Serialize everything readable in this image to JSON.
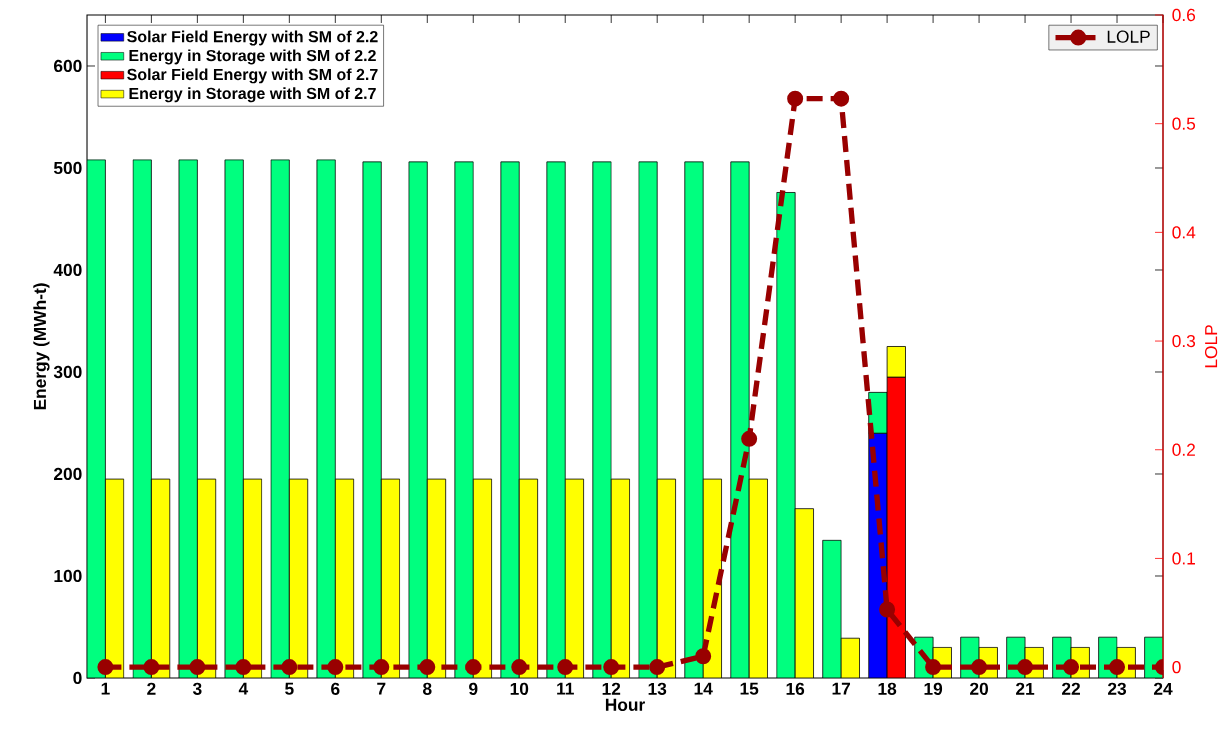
{
  "chart_data": {
    "type": "bar",
    "xlabel": "Hour",
    "ylabel": "Energy (MWh-t)",
    "y2label": "LOLP",
    "x": [
      1,
      2,
      3,
      4,
      5,
      6,
      7,
      8,
      9,
      10,
      11,
      12,
      13,
      14,
      15,
      16,
      17,
      18,
      19,
      20,
      21,
      22,
      23,
      24
    ],
    "xlim": [
      0.6,
      24
    ],
    "xticks": [
      1,
      2,
      3,
      4,
      5,
      6,
      7,
      8,
      9,
      10,
      11,
      12,
      13,
      14,
      15,
      16,
      17,
      18,
      19,
      20,
      21,
      22,
      23,
      24
    ],
    "ylim": [
      0,
      650
    ],
    "yticks": [
      0,
      100,
      200,
      300,
      400,
      500,
      600
    ],
    "y2lim": [
      -0.01,
      0.6
    ],
    "y2ticks": [
      0,
      0.1,
      0.2,
      0.3,
      0.4,
      0.5,
      0.6
    ],
    "legend": "top left",
    "grid": false,
    "series": [
      {
        "name": "Solar Field Energy with SM of 2.2",
        "color": "#0000ff",
        "values": [
          null,
          null,
          null,
          null,
          null,
          null,
          null,
          null,
          null,
          null,
          null,
          null,
          null,
          null,
          null,
          null,
          null,
          240,
          null,
          null,
          null,
          null,
          null,
          null
        ]
      },
      {
        "name": "Energy in Storage with SM of 2.2",
        "color": "#00ff7f",
        "base": [
          0,
          0,
          0,
          0,
          0,
          0,
          0,
          0,
          0,
          0,
          0,
          0,
          0,
          0,
          0,
          0,
          0,
          240,
          0,
          0,
          0,
          0,
          0,
          0
        ],
        "values": [
          508,
          508,
          508,
          508,
          508,
          508,
          506,
          506,
          506,
          506,
          506,
          506,
          506,
          506,
          506,
          476,
          135,
          40,
          40,
          40,
          40,
          40,
          40,
          40
        ]
      },
      {
        "name": "Solar Field Energy with SM of 2.7",
        "color": "#ff0000",
        "values": [
          null,
          null,
          null,
          null,
          null,
          null,
          null,
          null,
          null,
          null,
          null,
          null,
          null,
          null,
          null,
          null,
          null,
          295,
          null,
          null,
          null,
          null,
          null,
          null
        ]
      },
      {
        "name": "Energy in Storage with SM of 2.7",
        "color": "#ffff00",
        "base": [
          0,
          0,
          0,
          0,
          0,
          0,
          0,
          0,
          0,
          0,
          0,
          0,
          0,
          0,
          0,
          0,
          0,
          295,
          0,
          0,
          0,
          0,
          0,
          null
        ],
        "values": [
          195,
          195,
          195,
          195,
          195,
          195,
          195,
          195,
          195,
          195,
          195,
          195,
          195,
          195,
          195,
          166,
          39,
          30,
          30,
          30,
          30,
          30,
          30,
          null
        ]
      },
      {
        "name": "LOLP",
        "type": "line",
        "axis": "y2",
        "color": "#990000",
        "marker": "circle",
        "line_style": "dashed",
        "values": [
          0,
          0,
          0,
          0,
          0,
          0,
          0,
          0,
          0,
          0,
          0,
          0,
          0,
          0.01,
          0.21,
          0.523,
          0.523,
          0.053,
          0,
          0,
          0,
          0,
          0,
          0
        ]
      }
    ]
  }
}
